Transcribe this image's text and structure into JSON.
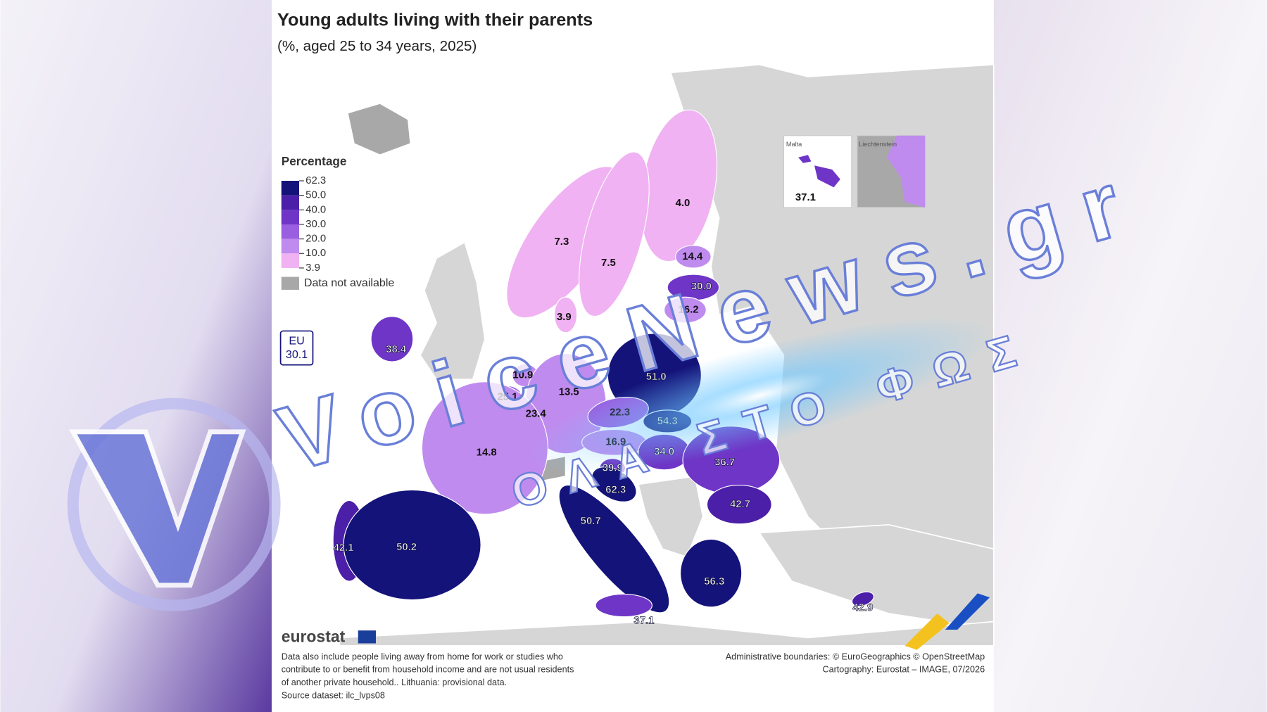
{
  "header": {
    "title": "Young adults living with their parents",
    "subtitle": "(%, aged 25 to 34 years, 2025)"
  },
  "legend": {
    "title": "Percentage",
    "breaks": [
      "62.3",
      "50.0",
      "40.0",
      "30.0",
      "20.0",
      "10.0",
      "3.9"
    ],
    "colors": [
      "#14137a",
      "#4b1fa8",
      "#6e35c6",
      "#9a5ee0",
      "#c08bee",
      "#f0b2f2"
    ],
    "na_label": "Data not available",
    "na_color": "#a8a8a8"
  },
  "eu": {
    "label": "EU",
    "value": "30.1"
  },
  "regions": [
    {
      "value": "4.0"
    },
    {
      "value": "7.3"
    },
    {
      "value": "7.5"
    },
    {
      "value": "14.4"
    },
    {
      "value": "30.0"
    },
    {
      "value": "16.2"
    },
    {
      "value": "3.9"
    },
    {
      "value": "38.4"
    },
    {
      "value": "10.9"
    },
    {
      "value": "25.1"
    },
    {
      "value": "23.4"
    },
    {
      "value": "13.5"
    },
    {
      "value": "51.0"
    },
    {
      "value": "22.3"
    },
    {
      "value": "54.3"
    },
    {
      "value": "16.9"
    },
    {
      "value": "34.0"
    },
    {
      "value": "36.7"
    },
    {
      "value": "14.8"
    },
    {
      "value": "39.9"
    },
    {
      "value": "62.3"
    },
    {
      "value": "42.7"
    },
    {
      "value": "50.7"
    },
    {
      "value": "42.1"
    },
    {
      "value": "50.2"
    },
    {
      "value": "56.3"
    },
    {
      "value": "37.1"
    },
    {
      "value": "42.9"
    }
  ],
  "insets": [
    {
      "name": "Malta",
      "value": "37.1"
    },
    {
      "name": "Liechtenstein"
    }
  ],
  "footer": {
    "brand": "eurostat",
    "note": [
      "Data also include people living away from home for work or studies who",
      "contribute to or benefit from household income and are not usual residents",
      "of another private household.. Lithuania: provisional data.",
      "Source dataset: ilc_lvps08"
    ],
    "credits": [
      "Administrative boundaries: © EuroGeographics © OpenStreetMap",
      "Cartography: Eurostat – IMAGE, 07/2026"
    ]
  },
  "watermark": {
    "site": "VoiceNews.gr",
    "slogan": "ΟΛΑ ΣΤΟ ΦΩΣ"
  }
}
